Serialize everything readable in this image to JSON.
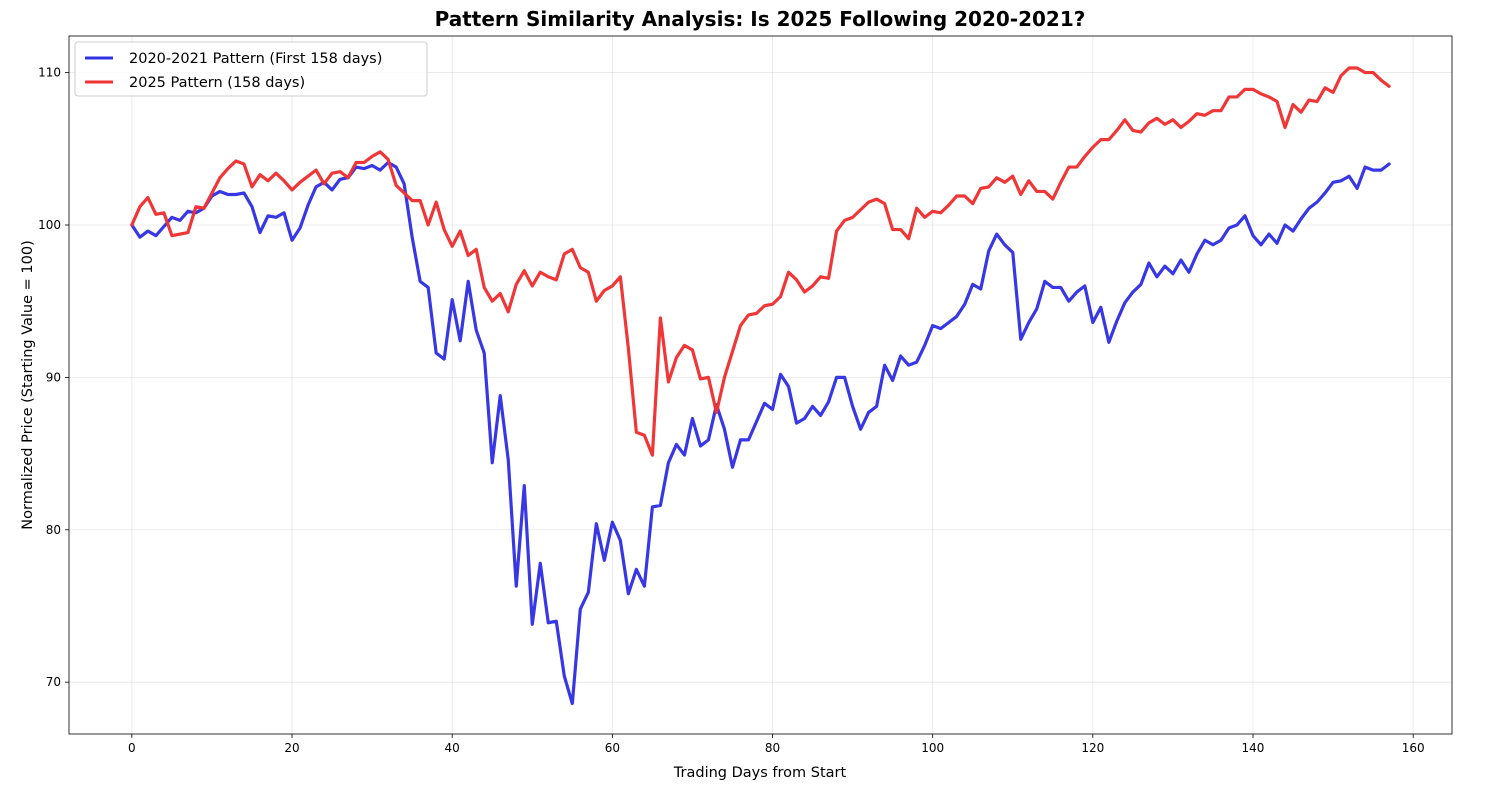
{
  "chart_data": {
    "type": "line",
    "title": "Pattern Similarity Analysis: Is 2025 Following 2020-2021?",
    "xlabel": "Trading Days from Start",
    "ylabel": "Normalized Price (Starting Value = 100)",
    "xlim": [
      -7.85,
      164.85
    ],
    "ylim": [
      66.6,
      112.4
    ],
    "xticks": [
      0,
      20,
      40,
      60,
      80,
      100,
      120,
      140,
      160
    ],
    "yticks": [
      70,
      80,
      90,
      100,
      110
    ],
    "grid": true,
    "legend_position": "top-left",
    "series": [
      {
        "name": "2020-2021 Pattern (First 158 days)",
        "color": "#3333e6",
        "x_start": 0,
        "values": [
          100,
          99.2,
          99.6,
          99.3,
          99.9,
          100.5,
          100.3,
          100.9,
          100.8,
          101.1,
          101.9,
          102.2,
          102.0,
          102.0,
          102.1,
          101.2,
          99.5,
          100.6,
          100.5,
          100.8,
          99.0,
          99.8,
          101.3,
          102.5,
          102.8,
          102.3,
          103.0,
          103.1,
          103.8,
          103.7,
          103.9,
          103.6,
          104.1,
          103.8,
          102.7,
          99.2,
          96.3,
          95.9,
          91.6,
          91.2,
          95.1,
          92.4,
          96.3,
          93.1,
          91.6,
          84.4,
          88.8,
          84.6,
          76.3,
          82.9,
          73.8,
          77.8,
          73.9,
          74.0,
          70.4,
          68.6,
          74.8,
          75.9,
          80.4,
          78.0,
          80.5,
          79.3,
          75.8,
          77.4,
          76.3,
          81.5,
          81.6,
          84.4,
          85.6,
          84.9,
          87.3,
          85.5,
          85.9,
          88.2,
          86.6,
          84.1,
          85.9,
          85.9,
          87.1,
          88.3,
          87.9,
          90.2,
          89.4,
          87.0,
          87.3,
          88.1,
          87.5,
          88.4,
          90.0,
          90.0,
          88.1,
          86.6,
          87.7,
          88.1,
          90.8,
          89.8,
          91.4,
          90.8,
          91.0,
          92.1,
          93.4,
          93.2,
          93.6,
          94.0,
          94.8,
          96.1,
          95.8,
          98.3,
          99.4,
          98.7,
          98.2,
          92.5,
          93.6,
          94.5,
          96.3,
          95.9,
          95.9,
          95.0,
          95.6,
          96.0,
          93.6,
          94.6,
          92.3,
          93.7,
          94.9,
          95.6,
          96.1,
          97.5,
          96.6,
          97.3,
          96.8,
          97.7,
          96.9,
          98.1,
          99.0,
          98.7,
          99.0,
          99.8,
          100.0,
          100.6,
          99.3,
          98.7,
          99.4,
          98.8,
          100.0,
          99.6,
          100.4,
          101.1,
          101.5,
          102.1,
          102.8,
          102.9,
          103.2,
          102.4,
          103.8,
          103.6,
          103.6,
          104.0
        ]
      },
      {
        "name": "2025 Pattern (158 days)",
        "color": "#f03232",
        "x_start": 0,
        "values": [
          100,
          101.2,
          101.8,
          100.7,
          100.8,
          99.3,
          99.4,
          99.5,
          101.2,
          101.1,
          102.1,
          103.1,
          103.7,
          104.2,
          104.0,
          102.5,
          103.3,
          102.9,
          103.4,
          102.9,
          102.3,
          102.8,
          103.2,
          103.6,
          102.7,
          103.4,
          103.5,
          103.1,
          104.1,
          104.1,
          104.5,
          104.8,
          104.3,
          102.6,
          102.1,
          101.6,
          101.6,
          100.0,
          101.5,
          99.7,
          98.6,
          99.6,
          98.0,
          98.4,
          95.9,
          95.0,
          95.5,
          94.3,
          96.1,
          97.0,
          96.0,
          96.9,
          96.6,
          96.4,
          98.1,
          98.4,
          97.2,
          96.9,
          95.0,
          95.7,
          96.0,
          96.6,
          91.9,
          86.4,
          86.2,
          84.9,
          93.9,
          89.7,
          91.3,
          92.1,
          91.8,
          89.9,
          90.0,
          87.7,
          90.0,
          91.7,
          93.4,
          94.1,
          94.2,
          94.7,
          94.8,
          95.3,
          96.9,
          96.4,
          95.6,
          96.0,
          96.6,
          96.5,
          99.6,
          100.3,
          100.5,
          101.0,
          101.5,
          101.7,
          101.4,
          99.7,
          99.7,
          99.1,
          101.1,
          100.5,
          100.9,
          100.8,
          101.3,
          101.9,
          101.9,
          101.4,
          102.4,
          102.5,
          103.1,
          102.8,
          103.2,
          102.0,
          102.9,
          102.2,
          102.2,
          101.7,
          102.8,
          103.8,
          103.8,
          104.5,
          105.1,
          105.6,
          105.6,
          106.2,
          106.9,
          106.2,
          106.1,
          106.7,
          107.0,
          106.6,
          106.9,
          106.4,
          106.8,
          107.3,
          107.2,
          107.5,
          107.5,
          108.4,
          108.4,
          108.9,
          108.9,
          108.6,
          108.4,
          108.1,
          106.4,
          107.9,
          107.4,
          108.2,
          108.1,
          109.0,
          108.7,
          109.8,
          110.3,
          110.3,
          110.0,
          110.0,
          109.5,
          109.1
        ]
      }
    ]
  }
}
